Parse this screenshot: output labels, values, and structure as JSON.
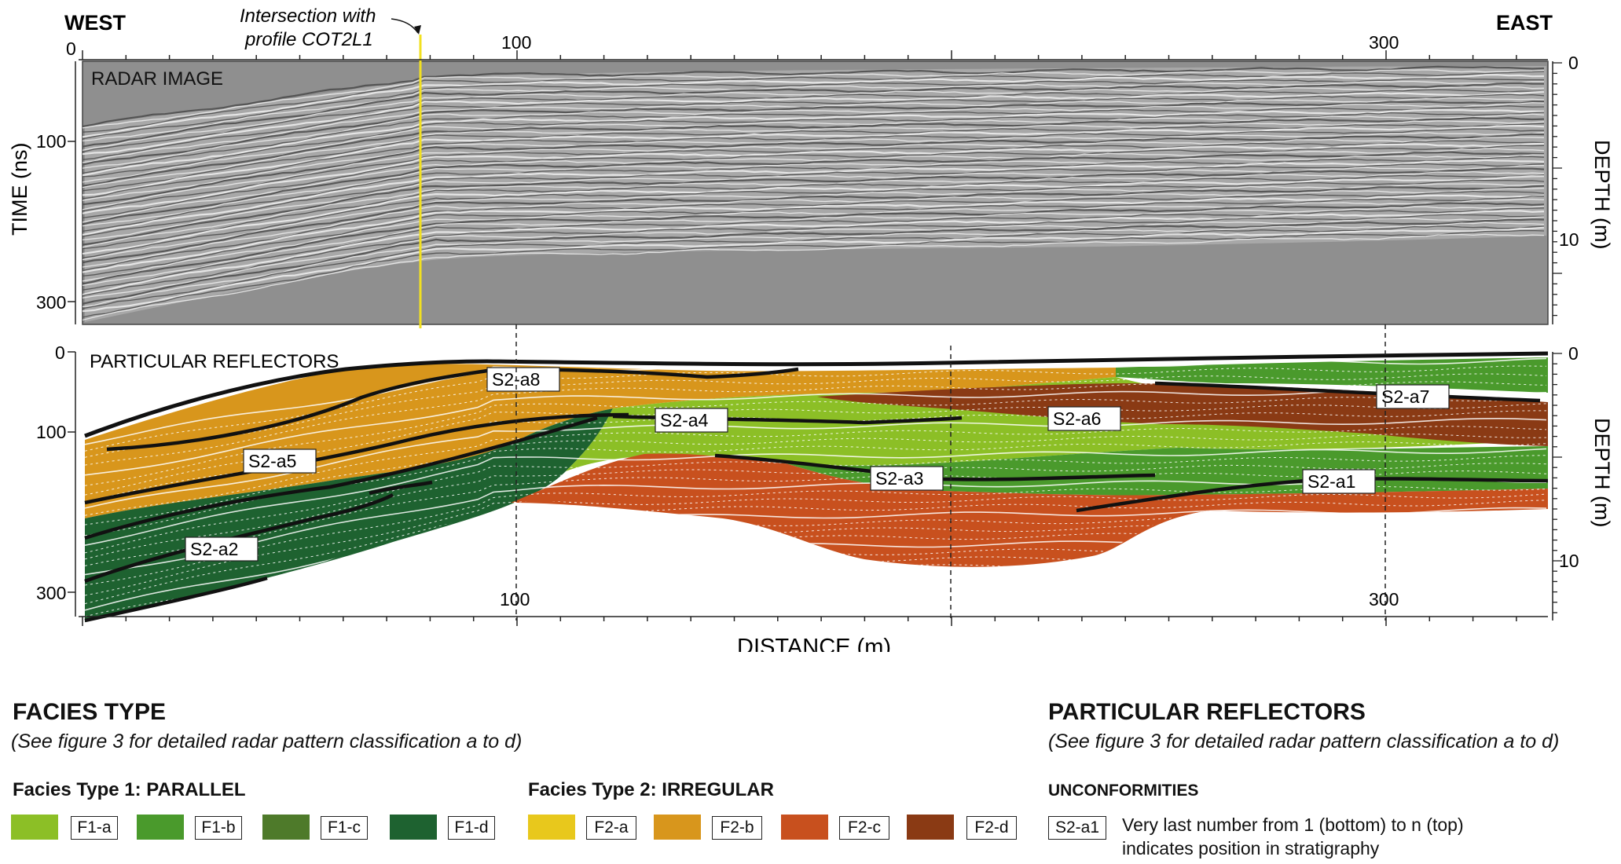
{
  "figure": {
    "west_label": "WEST",
    "east_label": "EAST",
    "intersection_text": [
      "Intersection with",
      "profile COT2L1"
    ],
    "radar_panel_title": "RADAR IMAGE",
    "reflector_panel_title": "PARTICULAR REFLECTORS",
    "time_axis_label": "TIME (ns)",
    "depth_axis_label": "DEPTH (m)",
    "distance_axis_label": "DISTANCE (m)",
    "top_distance_ticks": [
      "0",
      "100",
      "300"
    ],
    "bottom_distance_ticks": [
      "100",
      "300"
    ],
    "time_ticks_top": [
      "100",
      "300"
    ],
    "time_ticks_bottom": [
      "0",
      "100",
      "300"
    ],
    "depth_ticks_top": [
      "0",
      "10"
    ],
    "depth_ticks_bottom": [
      "0",
      "10"
    ],
    "reflector_labels": [
      "S2-a8",
      "S2-a4",
      "S2-a6",
      "S2-a7",
      "S2-a5",
      "S2-a3",
      "S2-a1",
      "S2-a2"
    ],
    "colors": {
      "F1-a": "#8cbf26",
      "F1-b": "#4a9a2c",
      "F1-c": "#4e7a2a",
      "F1-d": "#1e6230",
      "F2-a": "#e8c81c",
      "F2-b": "#d8961c",
      "F2-c": "#c8501e",
      "F2-d": "#8a3a14",
      "intersection_line": "#f2e020"
    }
  },
  "legend": {
    "facies_title": "FACIES TYPE",
    "facies_subtitle": "(See figure 3 for detailed radar pattern classification a to d)",
    "type1_title": "Facies Type 1: PARALLEL",
    "type2_title": "Facies Type 2: IRREGULAR",
    "type1_items": [
      "F1-a",
      "F1-b",
      "F1-c",
      "F1-d"
    ],
    "type2_items": [
      "F2-a",
      "F2-b",
      "F2-c",
      "F2-d"
    ],
    "reflectors_title": "PARTICULAR REFLECTORS",
    "reflectors_subtitle": "(See figure 3 for detailed radar pattern classification a to d)",
    "unconformities_title": "UNCONFORMITIES",
    "example_code": "S2-a1",
    "example_desc_line1": "Very last number from 1 (bottom) to n (top)",
    "example_desc_line2": "indicates position in stratigraphy"
  }
}
